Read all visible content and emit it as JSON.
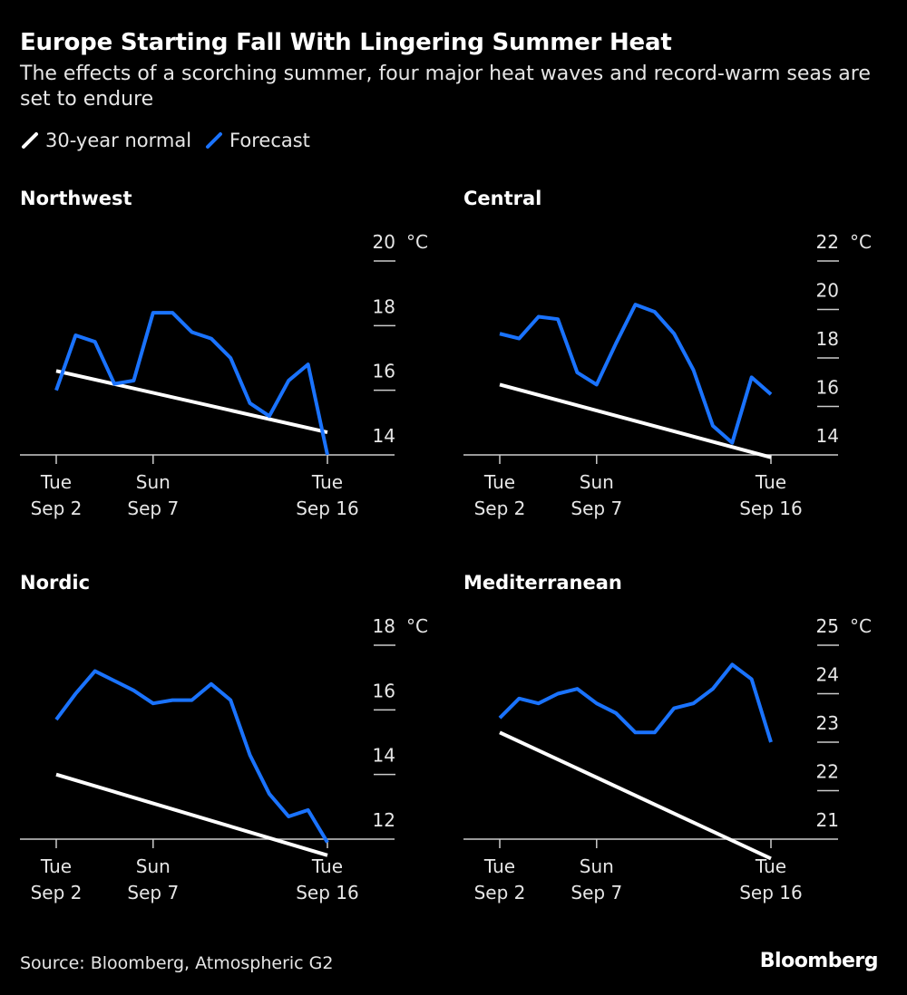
{
  "title": "Europe Starting Fall With Lingering Summer Heat",
  "subtitle": "The effects of a scorching summer, four major heat waves and record-warm seas are set to endure",
  "legend": [
    {
      "label": "30-year normal",
      "color": "#ffffff"
    },
    {
      "label": "Forecast",
      "color": "#1a73ff"
    }
  ],
  "source": "Source: Bloomberg, Atmospheric G2",
  "brand": "Bloomberg",
  "colors": {
    "background": "#000000",
    "normal": "#ffffff",
    "forecast": "#1a73ff",
    "axis": "#cccccc"
  },
  "chart_data": [
    {
      "type": "line",
      "title": "Northwest",
      "unit": "°C",
      "x_ticks": [
        {
          "day": 0,
          "line1": "Tue",
          "line2": "Sep 2"
        },
        {
          "day": 5,
          "line1": "Sun",
          "line2": "Sep 7"
        },
        {
          "day": 14,
          "line1": "Tue",
          "line2": "Sep 16"
        }
      ],
      "y_ticks": [
        14,
        16,
        18,
        20
      ],
      "ylim": [
        14,
        20
      ],
      "xlim": [
        0,
        14
      ],
      "series": [
        {
          "name": "30-year normal",
          "x": [
            0,
            14
          ],
          "values": [
            16.6,
            14.7
          ]
        },
        {
          "name": "Forecast",
          "x": [
            0,
            1,
            2,
            3,
            4,
            5,
            6,
            7,
            8,
            9,
            10,
            11,
            12,
            13,
            14
          ],
          "values": [
            16.0,
            17.7,
            17.5,
            16.2,
            16.3,
            18.4,
            18.4,
            17.8,
            17.6,
            17.0,
            15.6,
            15.2,
            16.3,
            16.8,
            14.0
          ]
        }
      ]
    },
    {
      "type": "line",
      "title": "Central",
      "unit": "°C",
      "x_ticks": [
        {
          "day": 0,
          "line1": "Tue",
          "line2": "Sep 2"
        },
        {
          "day": 5,
          "line1": "Sun",
          "line2": "Sep 7"
        },
        {
          "day": 14,
          "line1": "Tue",
          "line2": "Sep 16"
        }
      ],
      "y_ticks": [
        14,
        16,
        18,
        20,
        22
      ],
      "ylim": [
        14,
        22
      ],
      "xlim": [
        0,
        14
      ],
      "series": [
        {
          "name": "30-year normal",
          "x": [
            0,
            14
          ],
          "values": [
            16.9,
            13.9
          ]
        },
        {
          "name": "Forecast",
          "x": [
            0,
            1,
            2,
            3,
            4,
            5,
            6,
            7,
            8,
            9,
            10,
            11,
            12,
            13,
            14
          ],
          "values": [
            19.0,
            18.8,
            19.7,
            19.6,
            17.4,
            16.9,
            18.6,
            20.2,
            19.9,
            19.0,
            17.5,
            15.2,
            14.5,
            17.2,
            16.5
          ]
        }
      ]
    },
    {
      "type": "line",
      "title": "Nordic",
      "unit": "°C",
      "x_ticks": [
        {
          "day": 0,
          "line1": "Tue",
          "line2": "Sep 2"
        },
        {
          "day": 5,
          "line1": "Sun",
          "line2": "Sep 7"
        },
        {
          "day": 14,
          "line1": "Tue",
          "line2": "Sep 16"
        }
      ],
      "y_ticks": [
        12,
        14,
        16,
        18
      ],
      "ylim": [
        12,
        18
      ],
      "xlim": [
        0,
        14
      ],
      "series": [
        {
          "name": "30-year normal",
          "x": [
            0,
            14
          ],
          "values": [
            14.0,
            11.5
          ]
        },
        {
          "name": "Forecast",
          "x": [
            0,
            1,
            2,
            3,
            4,
            5,
            6,
            7,
            8,
            9,
            10,
            11,
            12,
            13,
            14
          ],
          "values": [
            15.7,
            16.5,
            17.2,
            16.9,
            16.6,
            16.2,
            16.3,
            16.3,
            16.8,
            16.3,
            14.6,
            13.4,
            12.7,
            12.9,
            11.9
          ]
        }
      ]
    },
    {
      "type": "line",
      "title": "Mediterranean",
      "unit": "°C",
      "x_ticks": [
        {
          "day": 0,
          "line1": "Tue",
          "line2": "Sep 2"
        },
        {
          "day": 5,
          "line1": "Sun",
          "line2": "Sep 7"
        },
        {
          "day": 14,
          "line1": "Tue",
          "line2": "Sep 16"
        }
      ],
      "y_ticks": [
        21,
        22,
        23,
        24,
        25
      ],
      "ylim": [
        21,
        25
      ],
      "xlim": [
        0,
        14
      ],
      "series": [
        {
          "name": "30-year normal",
          "x": [
            0,
            14
          ],
          "values": [
            23.2,
            20.6
          ]
        },
        {
          "name": "Forecast",
          "x": [
            0,
            1,
            2,
            3,
            4,
            5,
            6,
            7,
            8,
            9,
            10,
            11,
            12,
            13,
            14
          ],
          "values": [
            23.5,
            23.9,
            23.8,
            24.0,
            24.1,
            23.8,
            23.6,
            23.2,
            23.2,
            23.7,
            23.8,
            24.1,
            24.6,
            24.3,
            23.0
          ]
        }
      ]
    }
  ]
}
